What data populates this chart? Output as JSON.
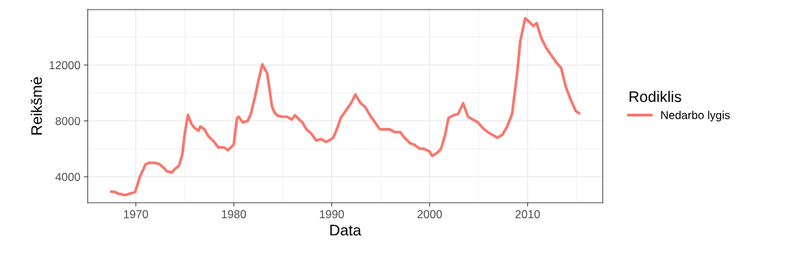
{
  "chart_data": {
    "type": "line",
    "xlabel": "Data",
    "ylabel": "Reikšmė",
    "legend_title": "Rodiklis",
    "legend": "right",
    "grid": true,
    "xlim": [
      "1965-02",
      "2017-09"
    ],
    "ylim": [
      2140,
      15970
    ],
    "xticks": [
      {
        "value": "1970-01-01",
        "label": "1970"
      },
      {
        "value": "1980-01-01",
        "label": "1980"
      },
      {
        "value": "1990-01-01",
        "label": "1990"
      },
      {
        "value": "2000-01-01",
        "label": "2000"
      },
      {
        "value": "2010-01-01",
        "label": "2010"
      }
    ],
    "yticks": [
      4000,
      8000,
      12000
    ],
    "x": [
      "1967-07",
      "1967-12",
      "1968-03",
      "1968-07",
      "1968-12",
      "1969-06",
      "1969-12",
      "1970-03",
      "1970-06",
      "1970-10",
      "1971-01",
      "1971-06",
      "1971-12",
      "1972-06",
      "1972-12",
      "1973-03",
      "1973-09",
      "1973-12",
      "1974-06",
      "1974-10",
      "1975-01",
      "1975-05",
      "1975-09",
      "1976-01",
      "1976-06",
      "1976-08",
      "1977-01",
      "1977-06",
      "1978-01",
      "1978-06",
      "1979-01",
      "1979-06",
      "1980-01",
      "1980-05",
      "1980-07",
      "1980-12",
      "1981-06",
      "1981-10",
      "1982-03",
      "1982-07",
      "1982-12",
      "1983-06",
      "1983-12",
      "1984-03",
      "1984-06",
      "1984-12",
      "1985-06",
      "1985-12",
      "1986-04",
      "1986-09",
      "1987-01",
      "1987-06",
      "1987-12",
      "1988-06",
      "1988-12",
      "1989-06",
      "1989-10",
      "1990-03",
      "1990-08",
      "1990-12",
      "1991-06",
      "1992-01",
      "1992-06",
      "1992-12",
      "1993-06",
      "1993-12",
      "1994-06",
      "1994-12",
      "1995-06",
      "1995-12",
      "1996-06",
      "1997-01",
      "1997-06",
      "1998-01",
      "1998-06",
      "1999-01",
      "1999-06",
      "2000-01",
      "2000-04",
      "2000-10",
      "2001-03",
      "2001-08",
      "2001-12",
      "2002-06",
      "2002-12",
      "2003-06",
      "2003-12",
      "2004-06",
      "2004-12",
      "2005-06",
      "2005-12",
      "2006-06",
      "2006-12",
      "2007-06",
      "2007-12",
      "2008-06",
      "2008-12",
      "2009-04",
      "2009-10",
      "2010-03",
      "2010-08",
      "2010-12",
      "2011-06",
      "2011-12",
      "2012-06",
      "2012-12",
      "2013-06",
      "2013-12",
      "2014-06",
      "2014-12",
      "2015-04"
    ],
    "series": [
      {
        "name": "Nedarbo lygis",
        "color": "#f8766d",
        "values": [
          2944,
          2900,
          2800,
          2750,
          2685,
          2800,
          2900,
          3400,
          4000,
          4500,
          4900,
          5000,
          5000,
          4900,
          4600,
          4400,
          4300,
          4500,
          4800,
          5600,
          7100,
          8433,
          7800,
          7500,
          7300,
          7600,
          7400,
          6900,
          6500,
          6100,
          6100,
          5900,
          6300,
          8200,
          8300,
          7900,
          8000,
          8500,
          9700,
          10800,
          12051,
          11400,
          9000,
          8600,
          8400,
          8300,
          8300,
          8100,
          8400,
          8100,
          7900,
          7400,
          7100,
          6600,
          6700,
          6500,
          6600,
          6800,
          7500,
          8200,
          8700,
          9300,
          9884,
          9300,
          9000,
          8400,
          7900,
          7400,
          7400,
          7400,
          7200,
          7200,
          6800,
          6400,
          6300,
          6000,
          6000,
          5800,
          5500,
          5700,
          6000,
          7000,
          8200,
          8400,
          8500,
          9266,
          8300,
          8100,
          7900,
          7500,
          7200,
          7000,
          6800,
          7000,
          7600,
          8500,
          11300,
          13700,
          15350,
          15100,
          14800,
          15000,
          13900,
          13200,
          12700,
          12200,
          11800,
          10400,
          9500,
          8700,
          8549
        ]
      }
    ]
  }
}
